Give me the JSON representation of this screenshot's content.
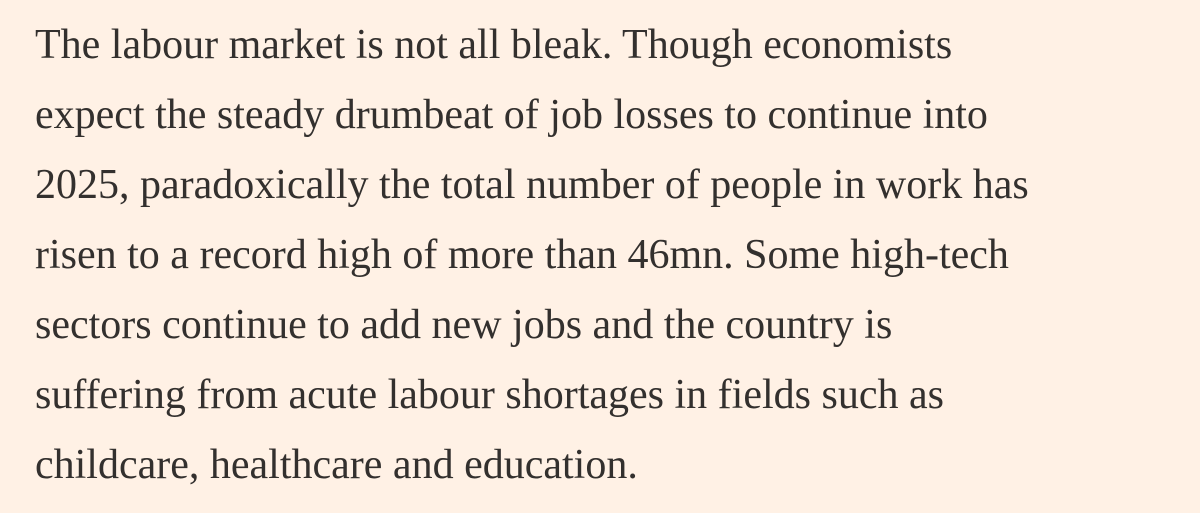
{
  "paragraph": {
    "lines": [
      "The labour market is not all bleak. Though economists",
      "expect the steady drumbeat of job losses to continue into",
      "2025, paradoxically the total number of people in work has",
      "risen to a record high of more than 46mn. Some high-tech",
      "sectors continue to add new jobs and the country is",
      "suffering from acute labour shortages in fields such as",
      "childcare, healthcare and education."
    ]
  }
}
